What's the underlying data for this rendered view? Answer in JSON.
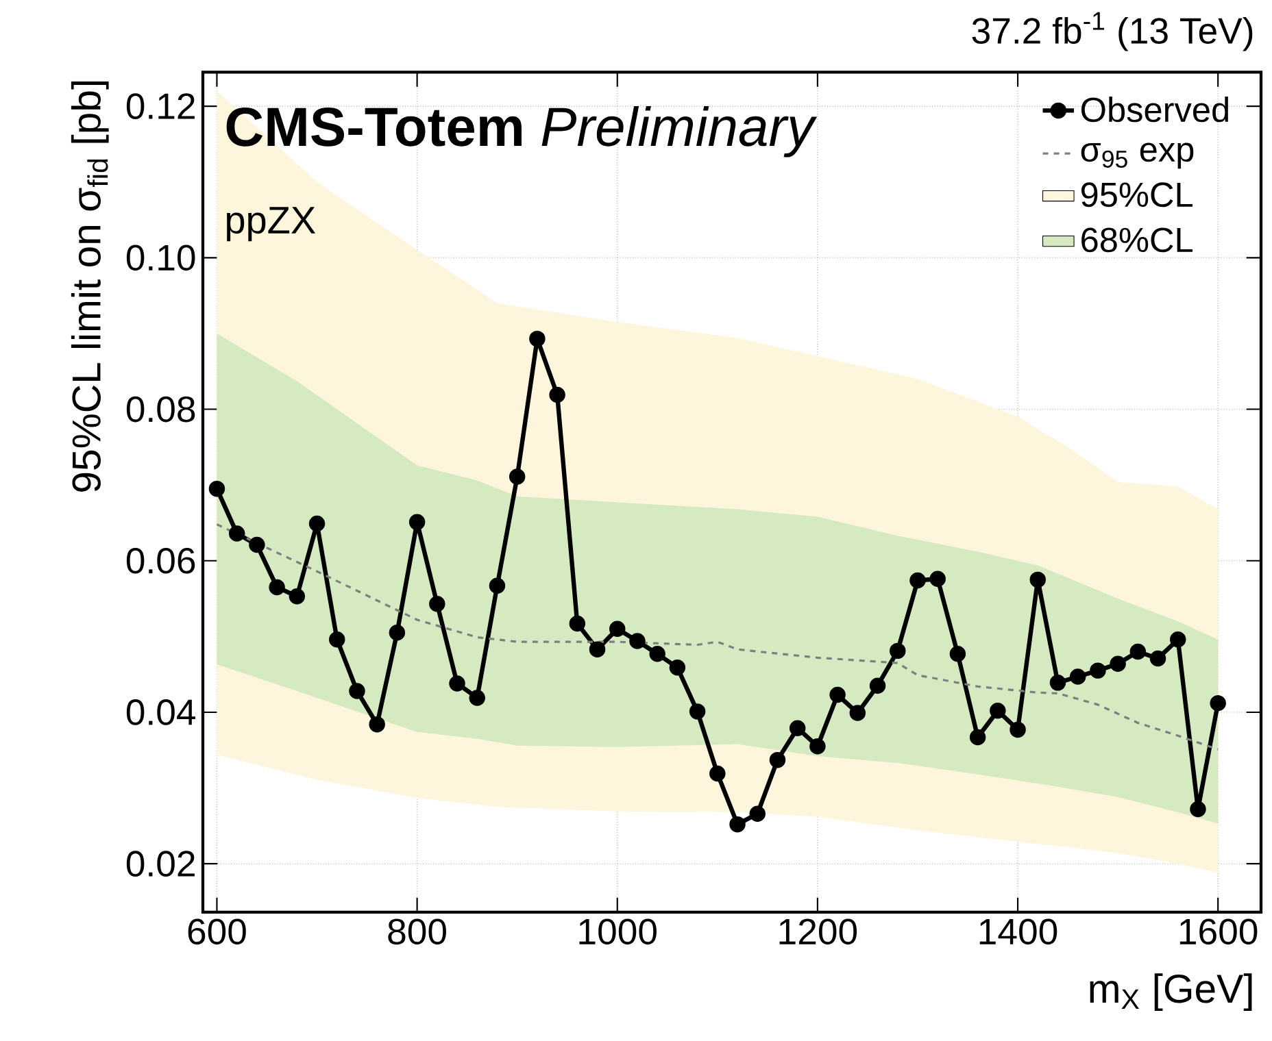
{
  "chart_data": {
    "type": "line",
    "title": "37.2 fb$^{-1}$ (13 TeV)",
    "xlabel": "m$_{X}$ [GeV]",
    "ylabel": "95%CL limit on σ$_{fid}$ [pb]",
    "annotations": [
      "**CMS-Totem** *Preliminary*",
      "ppZX"
    ],
    "xlim": [
      586,
      1643
    ],
    "ylim": [
      0.0136,
      0.1245
    ],
    "xticks": [
      600,
      800,
      1000,
      1200,
      1400,
      1600
    ],
    "yticks": [
      0.02,
      0.04,
      0.06,
      0.08,
      {
        "value": 0.1,
        "label": "0.10"
      },
      0.12
    ],
    "grid": true,
    "legend": "top right",
    "series": [
      {
        "name": "Observed",
        "type": "line",
        "color": "#000000",
        "marker": "circle",
        "line_style": "solid",
        "x": [
          600,
          620,
          640,
          660,
          680,
          700,
          720,
          740,
          760,
          780,
          800,
          820,
          840,
          860,
          880,
          900,
          920,
          940,
          960,
          980,
          1000,
          1020,
          1040,
          1060,
          1080,
          1100,
          1120,
          1140,
          1160,
          1180,
          1200,
          1220,
          1240,
          1260,
          1280,
          1300,
          1320,
          1340,
          1360,
          1380,
          1400,
          1420,
          1440,
          1460,
          1480,
          1500,
          1520,
          1540,
          1560,
          1580,
          1600
        ],
        "values": [
          0.0695,
          0.0636,
          0.0621,
          0.0565,
          0.0553,
          0.0649,
          0.0496,
          0.0428,
          0.0384,
          0.0505,
          0.0651,
          0.0543,
          0.0438,
          0.0419,
          0.0567,
          0.0711,
          0.0893,
          0.0819,
          0.0517,
          0.0483,
          0.051,
          0.0494,
          0.0477,
          0.0459,
          0.0401,
          0.0319,
          0.0252,
          0.0266,
          0.0337,
          0.0379,
          0.0355,
          0.0423,
          0.0399,
          0.0435,
          0.0481,
          0.0574,
          0.0576,
          0.0477,
          0.0367,
          0.0402,
          0.0377,
          0.0575,
          0.0439,
          0.0447,
          0.0455,
          0.0464,
          0.048,
          0.0471,
          0.0496,
          0.0272,
          0.0412
        ]
      },
      {
        "name": "σ$_{95}$ exp",
        "type": "line",
        "color": "#7f7f7f",
        "marker": "none",
        "line_style": "dashed",
        "x": [
          600,
          700,
          800,
          860,
          900,
          1000,
          1080,
          1100,
          1120,
          1200,
          1280,
          1300,
          1360,
          1420,
          1440,
          1480,
          1520,
          1560,
          1600
        ],
        "values": [
          0.0648,
          0.0586,
          0.0522,
          0.0499,
          0.0493,
          0.0493,
          0.0489,
          0.0493,
          0.0483,
          0.0472,
          0.0465,
          0.0449,
          0.0434,
          0.0426,
          0.0425,
          0.041,
          0.0386,
          0.0369,
          0.0351
        ]
      },
      {
        "name": "95%CL",
        "type": "area",
        "color": "#fdf6dc",
        "x": [
          600,
          700,
          800,
          880,
          1000,
          1120,
          1200,
          1300,
          1400,
          1450,
          1500,
          1560,
          1600
        ],
        "lower": [
          0.0344,
          0.0311,
          0.0287,
          0.0275,
          0.0269,
          0.0268,
          0.0262,
          0.0244,
          0.0229,
          0.0222,
          0.0214,
          0.02,
          0.0188
        ],
        "values": [
          null,
          null,
          null,
          null,
          null,
          null,
          null,
          null,
          null,
          null,
          null,
          null,
          null
        ],
        "upper": [
          0.122,
          0.11,
          0.101,
          0.094,
          0.0915,
          0.0894,
          0.087,
          0.084,
          0.079,
          0.075,
          0.0704,
          0.0698,
          0.0668
        ]
      },
      {
        "name": "68%CL",
        "type": "area",
        "color": "#d5eac0",
        "x": [
          600,
          680,
          800,
          860,
          900,
          1000,
          1120,
          1200,
          1280,
          1360,
          1420,
          1500,
          1560,
          1600
        ],
        "lower": [
          0.0463,
          0.0428,
          0.0374,
          0.0365,
          0.0356,
          0.0354,
          0.0358,
          0.0342,
          0.0333,
          0.0318,
          0.0306,
          0.0288,
          0.0268,
          0.0253
        ],
        "values": [
          null,
          null,
          null,
          null,
          null,
          null,
          null,
          null,
          null,
          null,
          null,
          null,
          null,
          null
        ],
        "upper": [
          0.09,
          0.0837,
          0.0726,
          0.0706,
          0.0685,
          0.0677,
          0.0668,
          0.0658,
          0.0633,
          0.0612,
          0.0594,
          0.055,
          0.052,
          0.0496
        ]
      }
    ]
  }
}
